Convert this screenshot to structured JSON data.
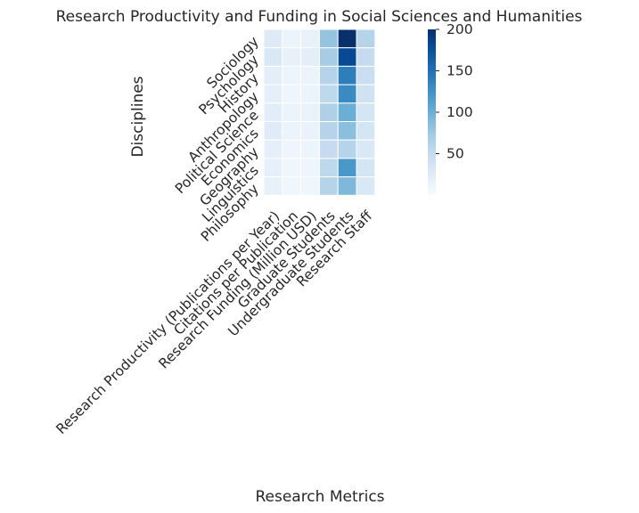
{
  "chart_data": {
    "type": "heatmap",
    "title": "Research Productivity and Funding in Social Sciences and Humanities",
    "xlabel": "Research Metrics",
    "ylabel": "Disciplines",
    "rows": [
      "Sociology",
      "Psychology",
      "History",
      "Anthropology",
      "Political Science",
      "Economics",
      "Geography",
      "Linguistics",
      "Philosophy"
    ],
    "columns": [
      "Research Productivity (Publications per Year)",
      "Citations per Publication",
      "Research Funding (Million USD)",
      "Graduate Students",
      "Undergraduate Students",
      "Research Staff"
    ],
    "values": [
      [
        25,
        12,
        15,
        80,
        200,
        60
      ],
      [
        30,
        15,
        20,
        70,
        180,
        50
      ],
      [
        20,
        10,
        12,
        60,
        140,
        45
      ],
      [
        18,
        9,
        11,
        55,
        130,
        40
      ],
      [
        22,
        11,
        14,
        65,
        100,
        35
      ],
      [
        24,
        12,
        13,
        60,
        85,
        35
      ],
      [
        19,
        9,
        10,
        50,
        60,
        30
      ],
      [
        17,
        8,
        9,
        55,
        120,
        35
      ],
      [
        16,
        8,
        8,
        60,
        90,
        30
      ]
    ],
    "vmin": 0,
    "vmax": 200,
    "colormap": "Blues",
    "colorbar_ticks": [
      50,
      100,
      150,
      200
    ],
    "gridlines": "white"
  }
}
